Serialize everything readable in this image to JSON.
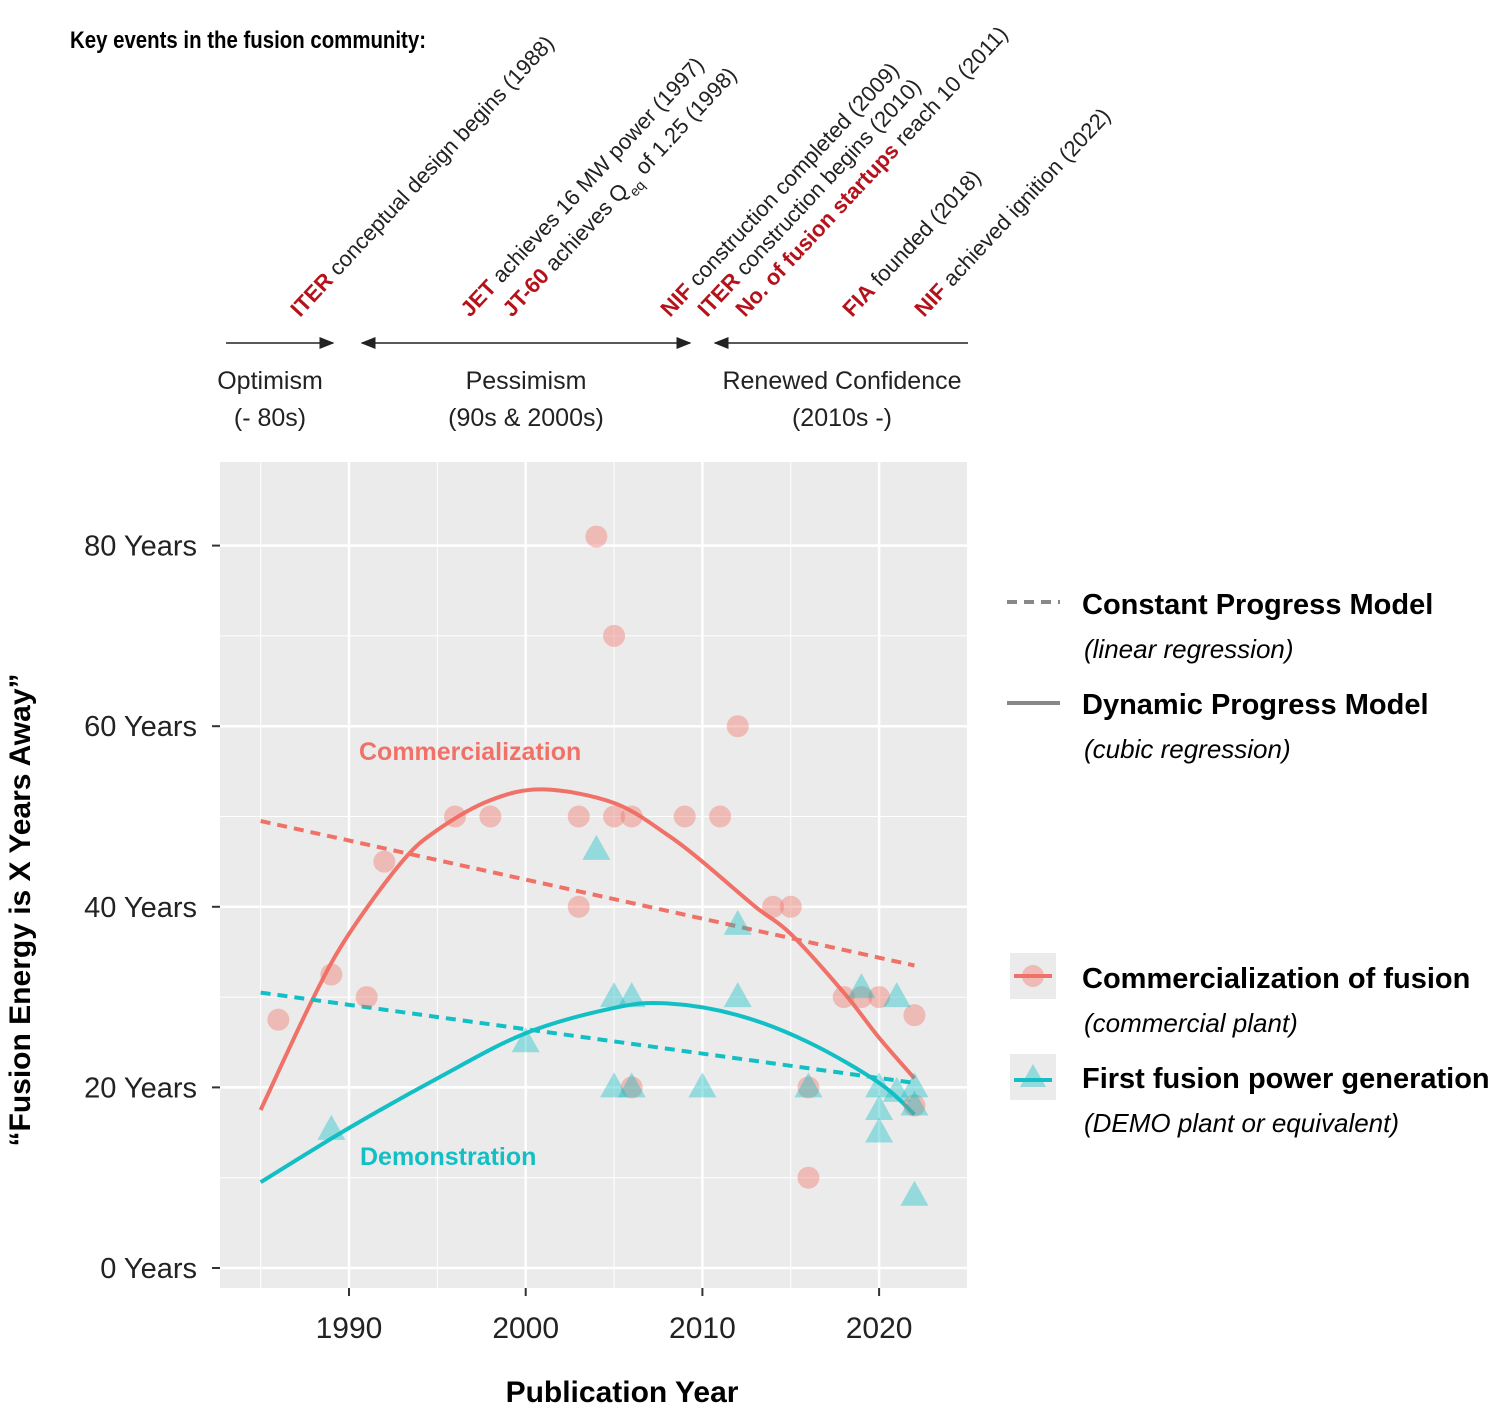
{
  "header": {
    "title": "Key events in the fusion community:"
  },
  "events": [
    {
      "parts": [
        {
          "t": "ITER",
          "b": true
        },
        {
          "t": " conceptual design begins (1988)"
        }
      ]
    },
    {
      "parts": [
        {
          "t": "JET",
          "b": true
        },
        {
          "t": " achieves 16 MW power (1997)"
        }
      ]
    },
    {
      "parts": [
        {
          "t": "JT-60",
          "b": true
        },
        {
          "t": " achieves Q"
        },
        {
          "t": "eq",
          "sub": true
        },
        {
          "t": " of 1.25 (1998)"
        }
      ]
    },
    {
      "parts": [
        {
          "t": "NIF",
          "b": true
        },
        {
          "t": " construction completed (2009)"
        }
      ]
    },
    {
      "parts": [
        {
          "t": "ITER",
          "b": true
        },
        {
          "t": " construction begins (2010)"
        }
      ]
    },
    {
      "parts": [
        {
          "t": "No. of fusion startups",
          "b": true
        },
        {
          "t": " reach 10 (2011)"
        }
      ]
    },
    {
      "parts": [
        {
          "t": "FIA",
          "b": true
        },
        {
          "t": " founded (2018)"
        }
      ]
    },
    {
      "parts": [
        {
          "t": "NIF",
          "b": true
        },
        {
          "t": " achieved ignition (2022)"
        }
      ]
    }
  ],
  "eras": [
    {
      "label": "Optimism",
      "sub": "(- 80s)"
    },
    {
      "label": "Pessimism",
      "sub": "(90s & 2000s)"
    },
    {
      "label": "Renewed Confidence",
      "sub": "(2010s -)"
    }
  ],
  "colors": {
    "event_highlight": "#b5121b",
    "commercial": "#f07167",
    "demo": "#12bfc4",
    "panel": "#ebebeb",
    "grid": "#ffffff"
  },
  "chart_data": {
    "type": "scatter",
    "xlabel": "Publication Year",
    "ylabel": "“Fusion Energy is X Years Away”",
    "xlim": [
      1982.7,
      2025
    ],
    "ylim": [
      -2.2,
      89.3
    ],
    "x_ticks": [
      1990,
      2000,
      2010,
      2020
    ],
    "x_tick_labels": [
      "1990",
      "2000",
      "2010",
      "2020"
    ],
    "y_ticks": [
      0,
      20,
      40,
      60,
      80
    ],
    "y_tick_labels": [
      "0 Years",
      "20 Years",
      "40 Years",
      "60 Years",
      "80 Years"
    ],
    "grid": true,
    "annotations": {
      "commercial": "Commercialization",
      "demo": "Demonstration"
    },
    "series": [
      {
        "name": "Commercialization of fusion",
        "note": "(commercial plant)",
        "marker": "circle",
        "color": "#f07167",
        "points": [
          [
            1986,
            27.5
          ],
          [
            1989,
            32.5
          ],
          [
            1991,
            30
          ],
          [
            1992,
            45
          ],
          [
            1996,
            50
          ],
          [
            1998,
            50
          ],
          [
            2003,
            40
          ],
          [
            2003,
            50
          ],
          [
            2004,
            81
          ],
          [
            2005,
            70
          ],
          [
            2005,
            50
          ],
          [
            2006,
            50
          ],
          [
            2006,
            20
          ],
          [
            2009,
            50
          ],
          [
            2011,
            50
          ],
          [
            2012,
            60
          ],
          [
            2014,
            40
          ],
          [
            2015,
            40
          ],
          [
            2016,
            20
          ],
          [
            2016,
            10
          ],
          [
            2018,
            30
          ],
          [
            2019,
            30
          ],
          [
            2020,
            30
          ],
          [
            2022,
            28
          ],
          [
            2022,
            18
          ]
        ],
        "linear_fit": [
          [
            1985,
            49.5
          ],
          [
            2022,
            33.5
          ]
        ],
        "cubic_fit": [
          [
            1985,
            17.5
          ],
          [
            1988,
            30
          ],
          [
            1990,
            37
          ],
          [
            1993,
            45
          ],
          [
            1995,
            48.5
          ],
          [
            1998,
            51.8
          ],
          [
            2001,
            53
          ],
          [
            2005,
            51.5
          ],
          [
            2008,
            48
          ],
          [
            2010,
            45
          ],
          [
            2013,
            40
          ],
          [
            2015,
            37
          ],
          [
            2018,
            30.5
          ],
          [
            2020,
            25.5
          ],
          [
            2022,
            21
          ]
        ]
      },
      {
        "name": "First fusion power generation",
        "note": "(DEMO plant or equivalent)",
        "marker": "triangle",
        "color": "#12bfc4",
        "points": [
          [
            1989,
            15.3
          ],
          [
            2000,
            25
          ],
          [
            2004,
            46.3
          ],
          [
            2005,
            30
          ],
          [
            2005,
            20
          ],
          [
            2006,
            30
          ],
          [
            2006,
            20
          ],
          [
            2010,
            20
          ],
          [
            2012,
            38
          ],
          [
            2012,
            30
          ],
          [
            2016,
            20
          ],
          [
            2019,
            31
          ],
          [
            2021,
            30
          ],
          [
            2020,
            20
          ],
          [
            2020,
            17.5
          ],
          [
            2020,
            15
          ],
          [
            2021,
            19.5
          ],
          [
            2022,
            20
          ],
          [
            2022,
            18
          ],
          [
            2022,
            8
          ]
        ],
        "linear_fit": [
          [
            1985,
            30.5
          ],
          [
            2022,
            20.5
          ]
        ],
        "cubic_fit": [
          [
            1985,
            9.5
          ],
          [
            1990,
            15.5
          ],
          [
            1995,
            21
          ],
          [
            2000,
            26
          ],
          [
            2005,
            28.8
          ],
          [
            2008,
            29.3
          ],
          [
            2012,
            28
          ],
          [
            2016,
            25
          ],
          [
            2020,
            20.5
          ],
          [
            2022,
            17
          ]
        ]
      }
    ],
    "legend": {
      "placement": "right",
      "models": [
        {
          "label": "Constant Progress Model",
          "sub": "(linear regression)",
          "style": "dashed"
        },
        {
          "label": "Dynamic Progress Model",
          "sub": "(cubic regression)",
          "style": "solid"
        }
      ]
    }
  }
}
